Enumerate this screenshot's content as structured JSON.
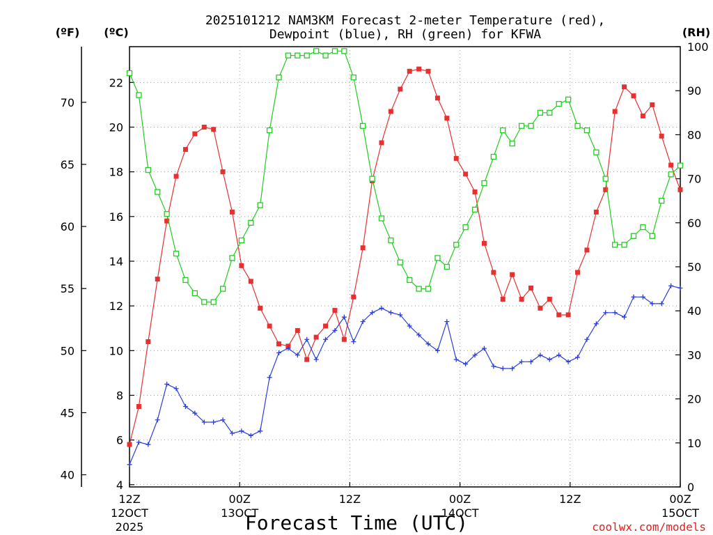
{
  "chart_data": {
    "type": "line",
    "title_line1": "2025101212 NAM3KM Forecast 2-meter Temperature (red),",
    "title_line2": "Dewpoint (blue), RH (green) for KFWA",
    "xlabel": "Forecast Time (UTC)",
    "watermark": "coolwx.com/models",
    "units": {
      "fahrenheit": "(ºF)",
      "celsius": "(ºC)",
      "rh": "(RH)"
    },
    "x_range_hours": [
      0,
      60
    ],
    "celsius_range": [
      3.9,
      23.6
    ],
    "rh_range": [
      0,
      100
    ],
    "x_ticks": [
      {
        "hour": 0,
        "line1": "12Z",
        "line2": "12OCT",
        "line3": "2025"
      },
      {
        "hour": 12,
        "line1": "00Z",
        "line2": "13OCT",
        "line3": ""
      },
      {
        "hour": 24,
        "line1": "12Z",
        "line2": "",
        "line3": ""
      },
      {
        "hour": 36,
        "line1": "00Z",
        "line2": "14OCT",
        "line3": ""
      },
      {
        "hour": 48,
        "line1": "12Z",
        "line2": "",
        "line3": ""
      },
      {
        "hour": 60,
        "line1": "00Z",
        "line2": "15OCT",
        "line3": ""
      }
    ],
    "celsius_ticks": [
      "4",
      "6",
      "8",
      "10",
      "12",
      "14",
      "16",
      "18",
      "20",
      "22"
    ],
    "fahrenheit_ticks": [
      "40",
      "45",
      "50",
      "55",
      "60",
      "65",
      "70"
    ],
    "rh_ticks": [
      "0",
      "10",
      "20",
      "30",
      "40",
      "50",
      "60",
      "70",
      "80",
      "90",
      "100"
    ],
    "colors": {
      "temperature": "#e83030",
      "dewpoint": "#2a3ee0",
      "rh": "#22cc22"
    },
    "series": [
      {
        "name": "Temperature (°C)",
        "axis": "celsius",
        "values": [
          5.8,
          7.5,
          10.4,
          13.2,
          15.8,
          17.8,
          19.0,
          19.7,
          20.0,
          19.9,
          18.0,
          16.2,
          13.8,
          13.1,
          11.9,
          11.1,
          10.3,
          10.2,
          10.9,
          9.6,
          10.6,
          11.1,
          11.8,
          10.5,
          12.4,
          14.6,
          17.6,
          19.3,
          20.7,
          21.7,
          22.5,
          22.6,
          22.5,
          21.3,
          20.4,
          18.6,
          17.9,
          17.1,
          14.8,
          13.5,
          12.3,
          13.4,
          12.3,
          12.8,
          11.9,
          12.3,
          11.6,
          11.6,
          13.5,
          14.5,
          16.2,
          17.2,
          20.7,
          21.8,
          21.4,
          20.5,
          21.0,
          19.6,
          18.3,
          17.2
        ]
      },
      {
        "name": "Dewpoint (°C)",
        "axis": "celsius",
        "values": [
          4.9,
          5.9,
          5.8,
          6.9,
          8.5,
          8.3,
          7.5,
          7.2,
          6.8,
          6.8,
          6.9,
          6.3,
          6.4,
          6.2,
          6.4,
          8.8,
          9.9,
          10.1,
          9.8,
          10.5,
          9.6,
          10.5,
          10.9,
          11.5,
          10.4,
          11.3,
          11.7,
          11.9,
          11.7,
          11.6,
          11.1,
          10.7,
          10.3,
          10.0,
          11.3,
          9.6,
          9.4,
          9.8,
          10.1,
          9.3,
          9.2,
          9.2,
          9.5,
          9.5,
          9.8,
          9.6,
          9.8,
          9.5,
          9.7,
          10.5,
          11.2,
          11.7,
          11.7,
          11.5,
          12.4,
          12.4,
          12.1,
          12.1,
          12.9,
          12.8
        ]
      },
      {
        "name": "RH (%)",
        "axis": "rh",
        "values": [
          94,
          89,
          72,
          67,
          62,
          53,
          47,
          44,
          42,
          42,
          45,
          52,
          56,
          60,
          64,
          81,
          93,
          98,
          98,
          98,
          99,
          98,
          99,
          99,
          93,
          82,
          70,
          61,
          56,
          51,
          47,
          45,
          45,
          52,
          50,
          55,
          59,
          63,
          69,
          75,
          81,
          78,
          82,
          82,
          85,
          85,
          87,
          88,
          82,
          81,
          76,
          70,
          55,
          55,
          57,
          59,
          57,
          65,
          71,
          73
        ]
      }
    ]
  }
}
